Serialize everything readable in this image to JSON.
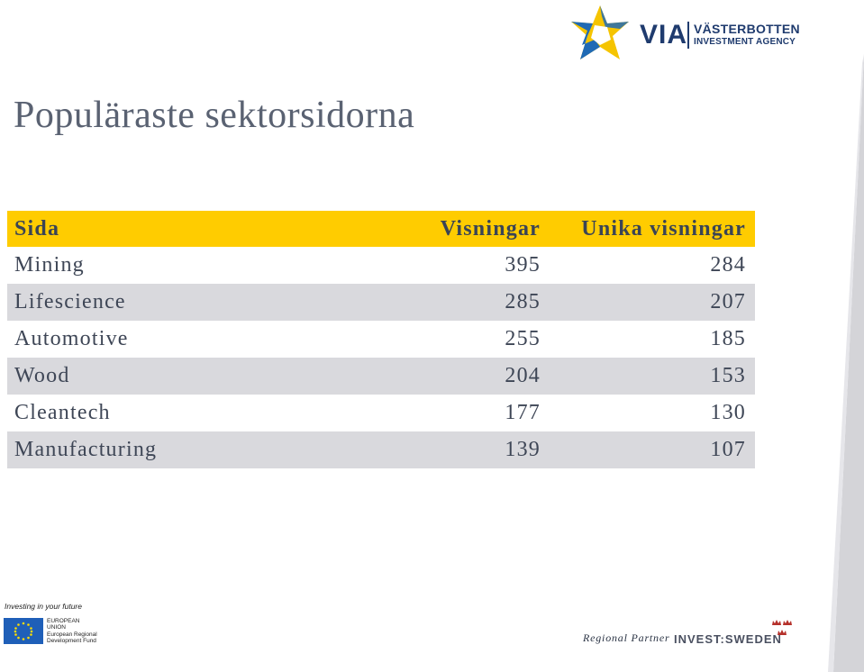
{
  "logo": {
    "via": "VIA",
    "name_line1": "VÄSTERBOTTEN",
    "name_line2": "INVESTMENT AGENCY"
  },
  "title": "Populäraste sektorsidorna",
  "table": {
    "headers": [
      "Sida",
      "Visningar",
      "Unika visningar"
    ],
    "rows": [
      [
        "Mining",
        "395",
        "284"
      ],
      [
        "Lifescience",
        "285",
        "207"
      ],
      [
        "Automotive",
        "255",
        "185"
      ],
      [
        "Wood",
        "204",
        "153"
      ],
      [
        "Cleantech",
        "177",
        "130"
      ],
      [
        "Manufacturing",
        "139",
        "107"
      ]
    ]
  },
  "footer": {
    "eu_tagline": "Investing in your future",
    "eu_line1": "EUROPEAN",
    "eu_line2": "UNION",
    "eu_line3": "European Regional",
    "eu_line4": "Development Fund",
    "regional_partner": "Regional Partner",
    "invest_sweden": "INVEST:SWEDEN"
  },
  "colors": {
    "header_yellow": "#ffcc00",
    "alt_row_gray": "#d9d9dd",
    "title_gray": "#5a6272",
    "logo_blue": "#1f6ab5",
    "logo_yellow": "#f5c400",
    "logo_navy": "#1f3b6e"
  }
}
